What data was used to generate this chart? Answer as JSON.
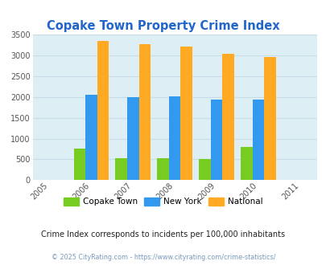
{
  "title": "Copake Town Property Crime Index",
  "years": [
    2005,
    2006,
    2007,
    2008,
    2009,
    2010,
    2011
  ],
  "bar_years": [
    2006,
    2007,
    2008,
    2009,
    2010
  ],
  "copake_town": [
    760,
    530,
    535,
    505,
    790
  ],
  "new_york": [
    2055,
    1990,
    2010,
    1940,
    1940
  ],
  "national": [
    3340,
    3265,
    3215,
    3040,
    2955
  ],
  "copake_color": "#77cc22",
  "newyork_color": "#3399ee",
  "national_color": "#ffaa22",
  "background_color": "#ddeef5",
  "title_color": "#2266cc",
  "grid_color": "#c8dde8",
  "ylim": [
    0,
    3500
  ],
  "yticks": [
    0,
    500,
    1000,
    1500,
    2000,
    2500,
    3000,
    3500
  ],
  "subtitle": "Crime Index corresponds to incidents per 100,000 inhabitants",
  "footer": "© 2025 CityRating.com - https://www.cityrating.com/crime-statistics/",
  "legend_labels": [
    "Copake Town",
    "New York",
    "National"
  ],
  "bar_width": 0.28
}
